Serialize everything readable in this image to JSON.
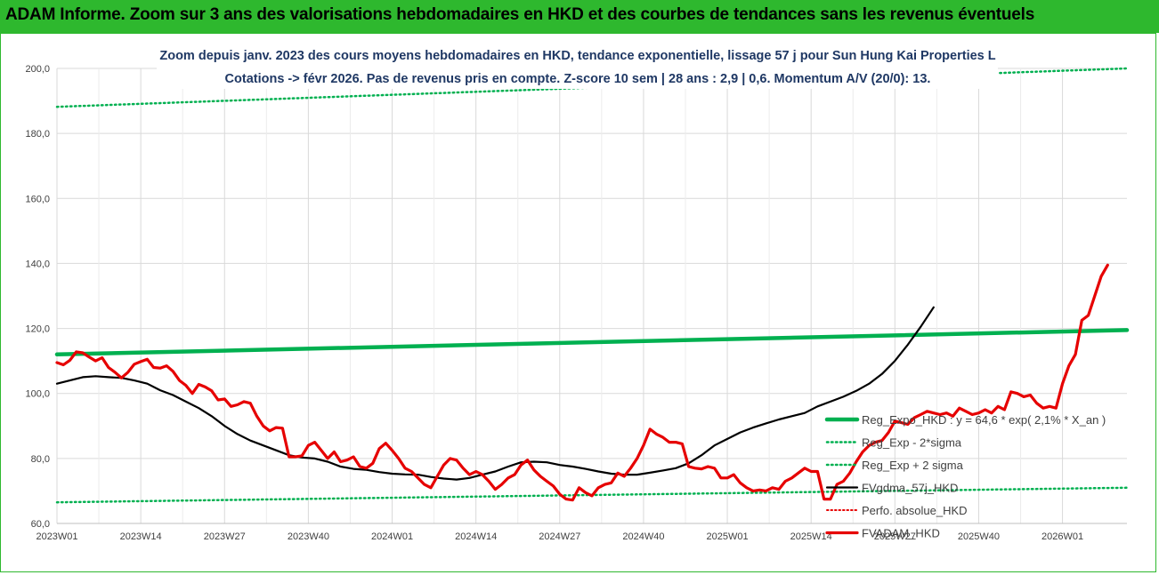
{
  "banner": {
    "title": "ADAM Informe. Zoom sur 3 ans des valorisations hebdomadaires en HKD et des courbes de tendances sans les revenus éventuels"
  },
  "colors": {
    "banner_bg": "#2eb82e",
    "trend": "#00b050",
    "bands": "#00b050",
    "smoothed": "#000000",
    "price": "#e60000",
    "perf": "#e60000"
  },
  "chart_data": {
    "type": "line",
    "title_line1": "Zoom depuis janv. 2023 des cours moyens hebdomadaires en HKD, tendance exponentielle, lissage 57 j pour Sun Hung Kai Properties L",
    "title_line2": "Cotations -> févr 2026. Pas de revenus pris en compte. Z-score 10 sem | 28 ans : 2,9 | 0,6. Momentum A/V (20/0): 13.",
    "x_tick_labels": [
      "2023W01",
      "2023W14",
      "2023W27",
      "2023W40",
      "2024W01",
      "2024W14",
      "2024W27",
      "2024W40",
      "2025W01",
      "2025W14",
      "2025W27",
      "2025W40",
      "2026W01"
    ],
    "y_tick_labels": [
      "60,0",
      "80,0",
      "100,0",
      "120,0",
      "140,0",
      "160,0",
      "180,0",
      "200,0"
    ],
    "ylim": [
      60,
      200
    ],
    "x_range_weeks": [
      0,
      166
    ],
    "grid": true,
    "legend_position": "right",
    "series": [
      {
        "name": "Reg_Expo_HKD : y = 64,6 * exp( 2,1% * X_an )",
        "style": "solid-thick",
        "points": [
          [
            0,
            112.0
          ],
          [
            166,
            119.5
          ]
        ]
      },
      {
        "name": "Reg_Exp - 2*sigma",
        "style": "dotted",
        "points": [
          [
            0,
            66.5
          ],
          [
            166,
            71.0
          ]
        ]
      },
      {
        "name": "Reg_Exp + 2 sigma",
        "style": "dotted",
        "points": [
          [
            0,
            188.2
          ],
          [
            166,
            200.0
          ]
        ]
      },
      {
        "name": "FVgdma_57j_HKD",
        "style": "solid",
        "points": [
          [
            0,
            103
          ],
          [
            4,
            104
          ],
          [
            8,
            105
          ],
          [
            12,
            105.3
          ],
          [
            16,
            105
          ],
          [
            20,
            104.8
          ],
          [
            24,
            104
          ],
          [
            28,
            103
          ],
          [
            32,
            101
          ],
          [
            36,
            99.5
          ],
          [
            40,
            97.5
          ],
          [
            44,
            95.5
          ],
          [
            48,
            93
          ],
          [
            52,
            90
          ],
          [
            56,
            87.5
          ],
          [
            60,
            85.5
          ],
          [
            64,
            84
          ],
          [
            68,
            82.5
          ],
          [
            72,
            81
          ],
          [
            76,
            80.3
          ],
          [
            80,
            80
          ],
          [
            84,
            79
          ],
          [
            88,
            77.5
          ],
          [
            92,
            76.8
          ],
          [
            96,
            76.5
          ],
          [
            100,
            75.8
          ],
          [
            104,
            75.3
          ],
          [
            108,
            75.1
          ],
          [
            112,
            75
          ],
          [
            116,
            74.3
          ],
          [
            120,
            73.8
          ],
          [
            124,
            73.5
          ],
          [
            128,
            74
          ],
          [
            132,
            75
          ],
          [
            136,
            76
          ],
          [
            140,
            77.5
          ],
          [
            144,
            78.8
          ],
          [
            148,
            79
          ],
          [
            152,
            78.8
          ],
          [
            156,
            78
          ],
          [
            160,
            77.5
          ],
          [
            164,
            76.8
          ],
          [
            168,
            76
          ],
          [
            172,
            75.3
          ],
          [
            176,
            75
          ],
          [
            180,
            75
          ],
          [
            184,
            75.6
          ],
          [
            188,
            76.3
          ],
          [
            192,
            77
          ],
          [
            196,
            78.5
          ],
          [
            200,
            81
          ],
          [
            204,
            84
          ],
          [
            208,
            86
          ],
          [
            212,
            88
          ],
          [
            216,
            89.5
          ],
          [
            220,
            90.8
          ],
          [
            224,
            92
          ],
          [
            228,
            93
          ],
          [
            232,
            94
          ],
          [
            236,
            96
          ],
          [
            240,
            97.5
          ],
          [
            244,
            99
          ],
          [
            248,
            100.8
          ],
          [
            252,
            103
          ],
          [
            256,
            106
          ],
          [
            260,
            110
          ],
          [
            264,
            115
          ],
          [
            268,
            120.5
          ],
          [
            272,
            126.5
          ]
        ]
      },
      {
        "name": "Perfo. absolue_HKD",
        "style": "dotted-red",
        "points": []
      },
      {
        "name": "FVADAM_HKD",
        "style": "solid-thick",
        "points": [
          [
            0,
            109.5
          ],
          [
            2,
            108.8
          ],
          [
            4,
            110.2
          ],
          [
            6,
            112.8
          ],
          [
            8,
            112.5
          ],
          [
            10,
            111.2
          ],
          [
            12,
            110
          ],
          [
            14,
            111
          ],
          [
            16,
            108
          ],
          [
            18,
            106.5
          ],
          [
            20,
            104.8
          ],
          [
            22,
            106.5
          ],
          [
            24,
            109
          ],
          [
            26,
            109.8
          ],
          [
            28,
            110.5
          ],
          [
            30,
            108
          ],
          [
            32,
            107.8
          ],
          [
            34,
            108.5
          ],
          [
            36,
            106.8
          ],
          [
            38,
            104
          ],
          [
            40,
            102.5
          ],
          [
            42,
            100
          ],
          [
            44,
            102.8
          ],
          [
            46,
            102
          ],
          [
            48,
            100.8
          ],
          [
            50,
            98
          ],
          [
            52,
            98.3
          ],
          [
            54,
            96
          ],
          [
            56,
            96.5
          ],
          [
            58,
            97.5
          ],
          [
            60,
            97
          ],
          [
            62,
            93
          ],
          [
            64,
            90
          ],
          [
            66,
            88.5
          ],
          [
            68,
            89.5
          ],
          [
            70,
            89.3
          ],
          [
            72,
            80.5
          ],
          [
            74,
            80.5
          ],
          [
            76,
            80.8
          ],
          [
            78,
            84
          ],
          [
            80,
            85
          ],
          [
            82,
            82.5
          ],
          [
            84,
            80
          ],
          [
            86,
            82
          ],
          [
            88,
            79
          ],
          [
            90,
            79.5
          ],
          [
            92,
            80.5
          ],
          [
            94,
            77.5
          ],
          [
            96,
            77
          ],
          [
            98,
            78.5
          ],
          [
            100,
            83
          ],
          [
            102,
            84.7
          ],
          [
            104,
            82.5
          ],
          [
            106,
            80
          ],
          [
            108,
            77
          ],
          [
            110,
            76
          ],
          [
            112,
            74
          ],
          [
            114,
            72
          ],
          [
            116,
            71
          ],
          [
            118,
            74.5
          ],
          [
            120,
            78
          ],
          [
            122,
            80
          ],
          [
            124,
            79.5
          ],
          [
            126,
            77
          ],
          [
            128,
            75
          ],
          [
            130,
            76
          ],
          [
            132,
            75
          ],
          [
            134,
            73
          ],
          [
            136,
            70.5
          ],
          [
            138,
            72
          ],
          [
            140,
            74
          ],
          [
            142,
            75
          ],
          [
            144,
            78
          ],
          [
            146,
            79.5
          ],
          [
            148,
            76.5
          ],
          [
            150,
            74.5
          ],
          [
            152,
            73
          ],
          [
            154,
            71.5
          ],
          [
            156,
            69
          ],
          [
            158,
            67.5
          ],
          [
            160,
            67.2
          ],
          [
            162,
            71
          ],
          [
            164,
            69.5
          ],
          [
            166,
            68.5
          ],
          [
            168,
            71
          ],
          [
            170,
            72
          ],
          [
            172,
            72.5
          ],
          [
            174,
            75.5
          ],
          [
            176,
            74.5
          ],
          [
            178,
            77
          ],
          [
            180,
            80
          ],
          [
            182,
            84
          ],
          [
            184,
            89
          ],
          [
            186,
            87.5
          ],
          [
            188,
            86.5
          ],
          [
            190,
            85
          ],
          [
            192,
            85
          ],
          [
            194,
            84.5
          ],
          [
            196,
            77.5
          ],
          [
            198,
            77
          ],
          [
            200,
            76.8
          ],
          [
            202,
            77.5
          ],
          [
            204,
            77
          ],
          [
            206,
            74
          ],
          [
            208,
            74
          ],
          [
            210,
            75
          ],
          [
            212,
            72.5
          ],
          [
            214,
            71
          ],
          [
            216,
            70
          ],
          [
            218,
            70.3
          ],
          [
            220,
            70
          ],
          [
            222,
            71
          ],
          [
            224,
            70.5
          ],
          [
            226,
            73
          ],
          [
            228,
            74
          ],
          [
            230,
            75.5
          ],
          [
            232,
            77
          ],
          [
            234,
            76
          ],
          [
            236,
            76
          ],
          [
            238,
            67.5
          ],
          [
            240,
            67.5
          ],
          [
            242,
            72
          ],
          [
            244,
            73
          ],
          [
            246,
            75.5
          ],
          [
            248,
            79
          ],
          [
            250,
            82
          ],
          [
            252,
            84
          ],
          [
            254,
            85
          ],
          [
            256,
            85.5
          ],
          [
            258,
            88
          ],
          [
            260,
            91.5
          ],
          [
            262,
            91
          ],
          [
            264,
            90.5
          ],
          [
            266,
            92.5
          ],
          [
            268,
            93.5
          ],
          [
            270,
            94.5
          ],
          [
            272,
            94
          ],
          [
            274,
            93.5
          ],
          [
            276,
            94
          ],
          [
            278,
            93
          ],
          [
            280,
            95.5
          ],
          [
            282,
            94.5
          ],
          [
            284,
            93.5
          ],
          [
            286,
            94
          ],
          [
            288,
            95
          ],
          [
            290,
            94
          ],
          [
            292,
            96
          ],
          [
            294,
            95
          ],
          [
            296,
            100.5
          ],
          [
            298,
            100
          ],
          [
            300,
            99
          ],
          [
            302,
            99.5
          ],
          [
            304,
            97
          ],
          [
            306,
            95.5
          ],
          [
            308,
            96
          ],
          [
            310,
            95.5
          ],
          [
            312,
            103
          ],
          [
            314,
            108.5
          ],
          [
            316,
            112
          ],
          [
            318,
            122.5
          ],
          [
            320,
            124
          ],
          [
            322,
            130
          ],
          [
            324,
            136
          ],
          [
            326,
            139.5
          ]
        ]
      }
    ]
  }
}
